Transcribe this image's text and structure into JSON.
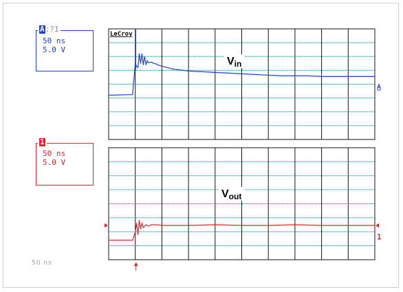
{
  "brand": "LeCroy",
  "ch1": {
    "tag_number": "A",
    "tag_suffix": ":?1",
    "timebase": "50 ns",
    "volts_per_div": "5.0 V",
    "trace_color": "#1e3fd6"
  },
  "ch2": {
    "tag_number": "1",
    "timebase": "50 ns",
    "volts_per_div": "5.0 V",
    "trace_color": "#e0202a"
  },
  "time_label": "50 ns",
  "grid_color": "#0b7d68",
  "chart_data": [
    {
      "type": "line",
      "title": "Vin",
      "series": [
        {
          "x": [
            -1.0,
            -0.1,
            0.0,
            0.05,
            0.1,
            0.15,
            0.2,
            0.25,
            0.3,
            0.35,
            0.4,
            0.45,
            0.5,
            0.6,
            0.7,
            0.8,
            0.9,
            1.0,
            1.2,
            1.4,
            1.6,
            1.8,
            2.0,
            2.5,
            3.0,
            3.5,
            4.0,
            4.5,
            5.0,
            5.5,
            6.0,
            6.5,
            7.0,
            7.5,
            8.0,
            8.5,
            9.0
          ],
          "y": [
            -0.8,
            -0.75,
            1.5,
            1.3,
            1.2,
            2.2,
            1.5,
            2.2,
            1.4,
            2.0,
            1.4,
            1.7,
            1.55,
            1.6,
            1.5,
            1.45,
            1.35,
            1.3,
            1.2,
            1.1,
            1.05,
            1.0,
            0.95,
            0.9,
            0.85,
            0.8,
            0.75,
            0.7,
            0.65,
            0.6,
            0.6,
            0.6,
            0.55,
            0.55,
            0.55,
            0.55,
            0.55
          ]
        }
      ]
    },
    {
      "type": "line",
      "title": "Vout",
      "series": [
        {
          "x": [
            -1.0,
            -0.1,
            0.0,
            0.05,
            0.1,
            0.15,
            0.2,
            0.25,
            0.3,
            0.4,
            0.5,
            0.6,
            0.8,
            1.0,
            1.5,
            2.0,
            3.0,
            4.0,
            5.0,
            6.0,
            7.0,
            8.0,
            9.0
          ],
          "y": [
            -2.6,
            -2.6,
            -2.0,
            -1.4,
            -2.2,
            -1.2,
            -1.8,
            -1.4,
            -1.7,
            -1.5,
            -1.6,
            -1.5,
            -1.5,
            -1.55,
            -1.55,
            -1.55,
            -1.5,
            -1.55,
            -1.55,
            -1.5,
            -1.55,
            -1.55,
            -1.55
          ]
        }
      ]
    }
  ]
}
